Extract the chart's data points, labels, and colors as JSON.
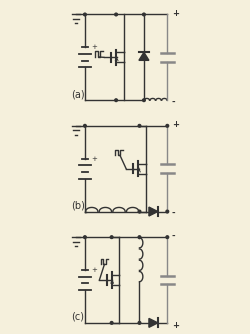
{
  "bg_color": "#f5f0dc",
  "line_color": "#333333",
  "cap_color": "#888888",
  "fig_width": 2.5,
  "fig_height": 3.34,
  "dpi": 100,
  "label_a": "(a)",
  "label_b": "(b)",
  "label_c": "(c)"
}
